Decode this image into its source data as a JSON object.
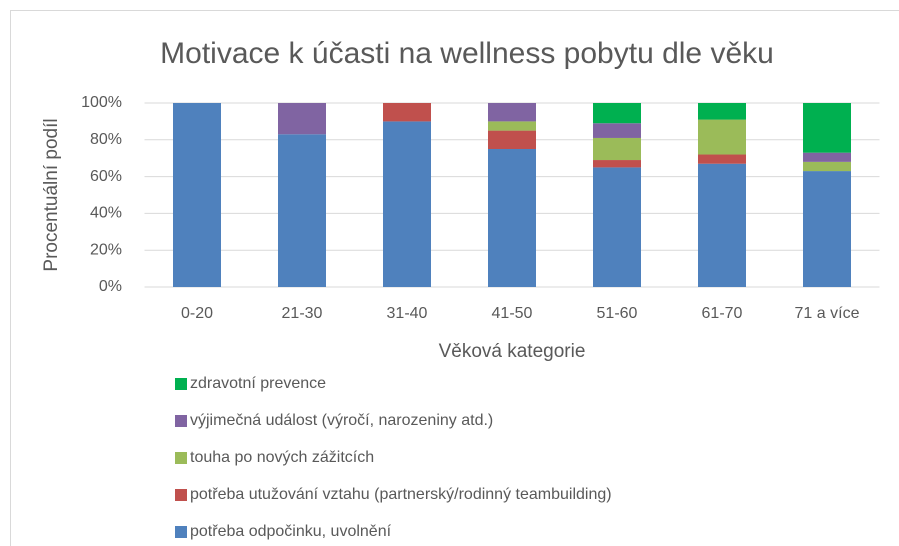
{
  "chart_data": {
    "type": "stacked_bar",
    "title": "Motivace k účasti na wellness pobytu dle věku",
    "x_label": "Věková kategorie",
    "y_label": "Procentuální podíl",
    "categories": [
      "0-20",
      "21-30",
      "31-40",
      "41-50",
      "51-60",
      "61-70",
      "71 a více"
    ],
    "series": [
      {
        "name": "potřeba odpočinku, uvolnění",
        "color": "#4f81bd",
        "values": [
          100,
          83,
          90,
          75,
          65,
          67,
          63
        ]
      },
      {
        "name": "potřeba utužování vztahu (partnerský/rodinný teambuilding)",
        "color": "#c0504d",
        "values": [
          0,
          0,
          10,
          10,
          4,
          5,
          0
        ]
      },
      {
        "name": "touha po nových zážitcích",
        "color": "#9bbb59",
        "values": [
          0,
          0,
          0,
          5,
          12,
          19,
          5
        ]
      },
      {
        "name": "výjimečná událost (výročí, narozeniny atd.)",
        "color": "#8064a2",
        "values": [
          0,
          17,
          0,
          10,
          8,
          0,
          5
        ]
      },
      {
        "name": "zdravotní prevence",
        "color": "#00b050",
        "values": [
          0,
          0,
          0,
          0,
          11,
          9,
          27
        ]
      }
    ],
    "ylim": [
      0,
      100
    ],
    "yticks": [
      {
        "value": 0,
        "label": "0%"
      },
      {
        "value": 20,
        "label": "20%"
      },
      {
        "value": 40,
        "label": "40%"
      },
      {
        "value": 60,
        "label": "60%"
      },
      {
        "value": 80,
        "label": "80%"
      },
      {
        "value": 100,
        "label": "100%"
      }
    ],
    "grid": true,
    "legend": "bottom"
  }
}
